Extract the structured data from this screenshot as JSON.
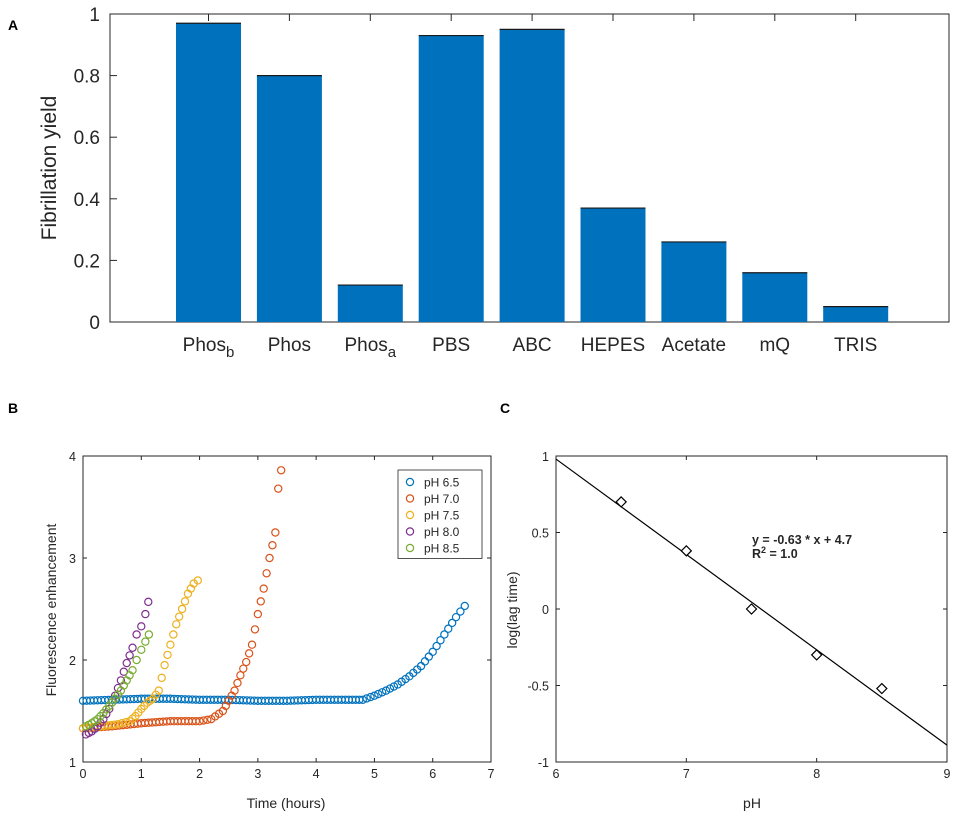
{
  "figure": {
    "panels": [
      {
        "letter": "A"
      },
      {
        "letter": "B"
      },
      {
        "letter": "C"
      }
    ]
  },
  "chart_data": [
    {
      "id": "A",
      "type": "bar",
      "ylabel": "Fibrillation yield",
      "xlabel": "",
      "ylim": [
        0,
        1
      ],
      "yticks": [
        "0",
        "0.2",
        "0.4",
        "0.6",
        "0.8",
        "1"
      ],
      "categories": [
        {
          "label": "Phos",
          "sub": "b"
        },
        {
          "label": "Phos",
          "sub": ""
        },
        {
          "label": "Phos",
          "sub": "a"
        },
        {
          "label": "PBS",
          "sub": ""
        },
        {
          "label": "ABC",
          "sub": ""
        },
        {
          "label": "HEPES",
          "sub": ""
        },
        {
          "label": "Acetate",
          "sub": ""
        },
        {
          "label": "mQ",
          "sub": ""
        },
        {
          "label": "TRIS",
          "sub": ""
        }
      ],
      "values": [
        0.97,
        0.8,
        0.12,
        0.93,
        0.95,
        0.37,
        0.26,
        0.16,
        0.05
      ],
      "color": "#0072BD"
    },
    {
      "id": "B",
      "type": "scatter",
      "xlabel": "Time (hours)",
      "ylabel": "Fluorescence enhancement",
      "xlim": [
        0,
        7
      ],
      "ylim": [
        1,
        4
      ],
      "xticks": [
        "0",
        "1",
        "2",
        "3",
        "4",
        "5",
        "6",
        "7"
      ],
      "yticks": [
        "1",
        "2",
        "3",
        "4"
      ],
      "legend_position": "top-right",
      "series": [
        {
          "name": "pH 6.5",
          "color": "#0072BD",
          "points": [
            [
              0,
              1.6
            ],
            [
              0.5,
              1.61
            ],
            [
              1,
              1.62
            ],
            [
              1.5,
              1.62
            ],
            [
              2,
              1.61
            ],
            [
              2.5,
              1.61
            ],
            [
              3,
              1.6
            ],
            [
              3.5,
              1.6
            ],
            [
              4,
              1.61
            ],
            [
              4.5,
              1.61
            ],
            [
              4.8,
              1.61
            ],
            [
              5.0,
              1.65
            ],
            [
              5.2,
              1.7
            ],
            [
              5.4,
              1.76
            ],
            [
              5.6,
              1.84
            ],
            [
              5.8,
              1.94
            ],
            [
              6.0,
              2.08
            ],
            [
              6.2,
              2.25
            ],
            [
              6.4,
              2.42
            ],
            [
              6.55,
              2.53
            ]
          ]
        },
        {
          "name": "pH 7.0",
          "color": "#D95319",
          "points": [
            [
              0,
              1.33
            ],
            [
              0.5,
              1.35
            ],
            [
              1,
              1.38
            ],
            [
              1.5,
              1.4
            ],
            [
              2,
              1.4
            ],
            [
              2.2,
              1.42
            ],
            [
              2.4,
              1.5
            ],
            [
              2.5,
              1.6
            ],
            [
              2.6,
              1.7
            ],
            [
              2.7,
              1.85
            ],
            [
              2.8,
              1.98
            ],
            [
              2.9,
              2.15
            ],
            [
              3.0,
              2.45
            ],
            [
              3.1,
              2.7
            ],
            [
              3.2,
              3.0
            ],
            [
              3.3,
              3.25
            ],
            [
              3.35,
              3.68
            ],
            [
              3.4,
              3.86
            ]
          ]
        },
        {
          "name": "pH 7.5",
          "color": "#EDB120",
          "points": [
            [
              0,
              1.33
            ],
            [
              0.3,
              1.35
            ],
            [
              0.6,
              1.37
            ],
            [
              0.8,
              1.4
            ],
            [
              0.9,
              1.45
            ],
            [
              1.0,
              1.52
            ],
            [
              1.1,
              1.58
            ],
            [
              1.2,
              1.62
            ],
            [
              1.3,
              1.7
            ],
            [
              1.4,
              1.95
            ],
            [
              1.5,
              2.15
            ],
            [
              1.6,
              2.35
            ],
            [
              1.7,
              2.5
            ],
            [
              1.8,
              2.65
            ],
            [
              1.9,
              2.75
            ],
            [
              1.97,
              2.78
            ]
          ]
        },
        {
          "name": "pH 8.0",
          "color": "#7E2F8E",
          "points": [
            [
              0.05,
              1.27
            ],
            [
              0.15,
              1.3
            ],
            [
              0.25,
              1.35
            ],
            [
              0.35,
              1.42
            ],
            [
              0.45,
              1.52
            ],
            [
              0.55,
              1.65
            ],
            [
              0.65,
              1.8
            ],
            [
              0.75,
              1.97
            ],
            [
              0.85,
              2.12
            ],
            [
              0.92,
              2.25
            ],
            [
              1.0,
              2.33
            ],
            [
              1.07,
              2.45
            ],
            [
              1.12,
              2.57
            ]
          ]
        },
        {
          "name": "pH 8.5",
          "color": "#77AC30",
          "points": [
            [
              0.05,
              1.35
            ],
            [
              0.15,
              1.38
            ],
            [
              0.25,
              1.42
            ],
            [
              0.35,
              1.48
            ],
            [
              0.45,
              1.55
            ],
            [
              0.55,
              1.62
            ],
            [
              0.65,
              1.7
            ],
            [
              0.75,
              1.8
            ],
            [
              0.85,
              1.9
            ],
            [
              0.92,
              2.0
            ],
            [
              1.0,
              2.1
            ],
            [
              1.07,
              2.18
            ],
            [
              1.13,
              2.25
            ]
          ]
        }
      ]
    },
    {
      "id": "C",
      "type": "scatter",
      "xlabel": "pH",
      "ylabel": "log(lag time)",
      "xlim": [
        6,
        9
      ],
      "ylim": [
        -1,
        1
      ],
      "xticks": [
        "6",
        "7",
        "8",
        "9"
      ],
      "yticks": [
        "-1",
        "-0.5",
        "0",
        "0.5",
        "1"
      ],
      "points": [
        [
          6.5,
          0.7
        ],
        [
          7.0,
          0.38
        ],
        [
          7.5,
          0.0
        ],
        [
          8.0,
          -0.3
        ],
        [
          8.5,
          -0.52
        ]
      ],
      "fit_line": {
        "x": [
          6,
          9
        ],
        "y": [
          0.98,
          -0.89
        ]
      },
      "annotation_eq": "y = -0.63 * x + 4.7",
      "annotation_r2_prefix": "R",
      "annotation_r2_sup": "2",
      "annotation_r2_suffix": " = 1.0"
    }
  ]
}
